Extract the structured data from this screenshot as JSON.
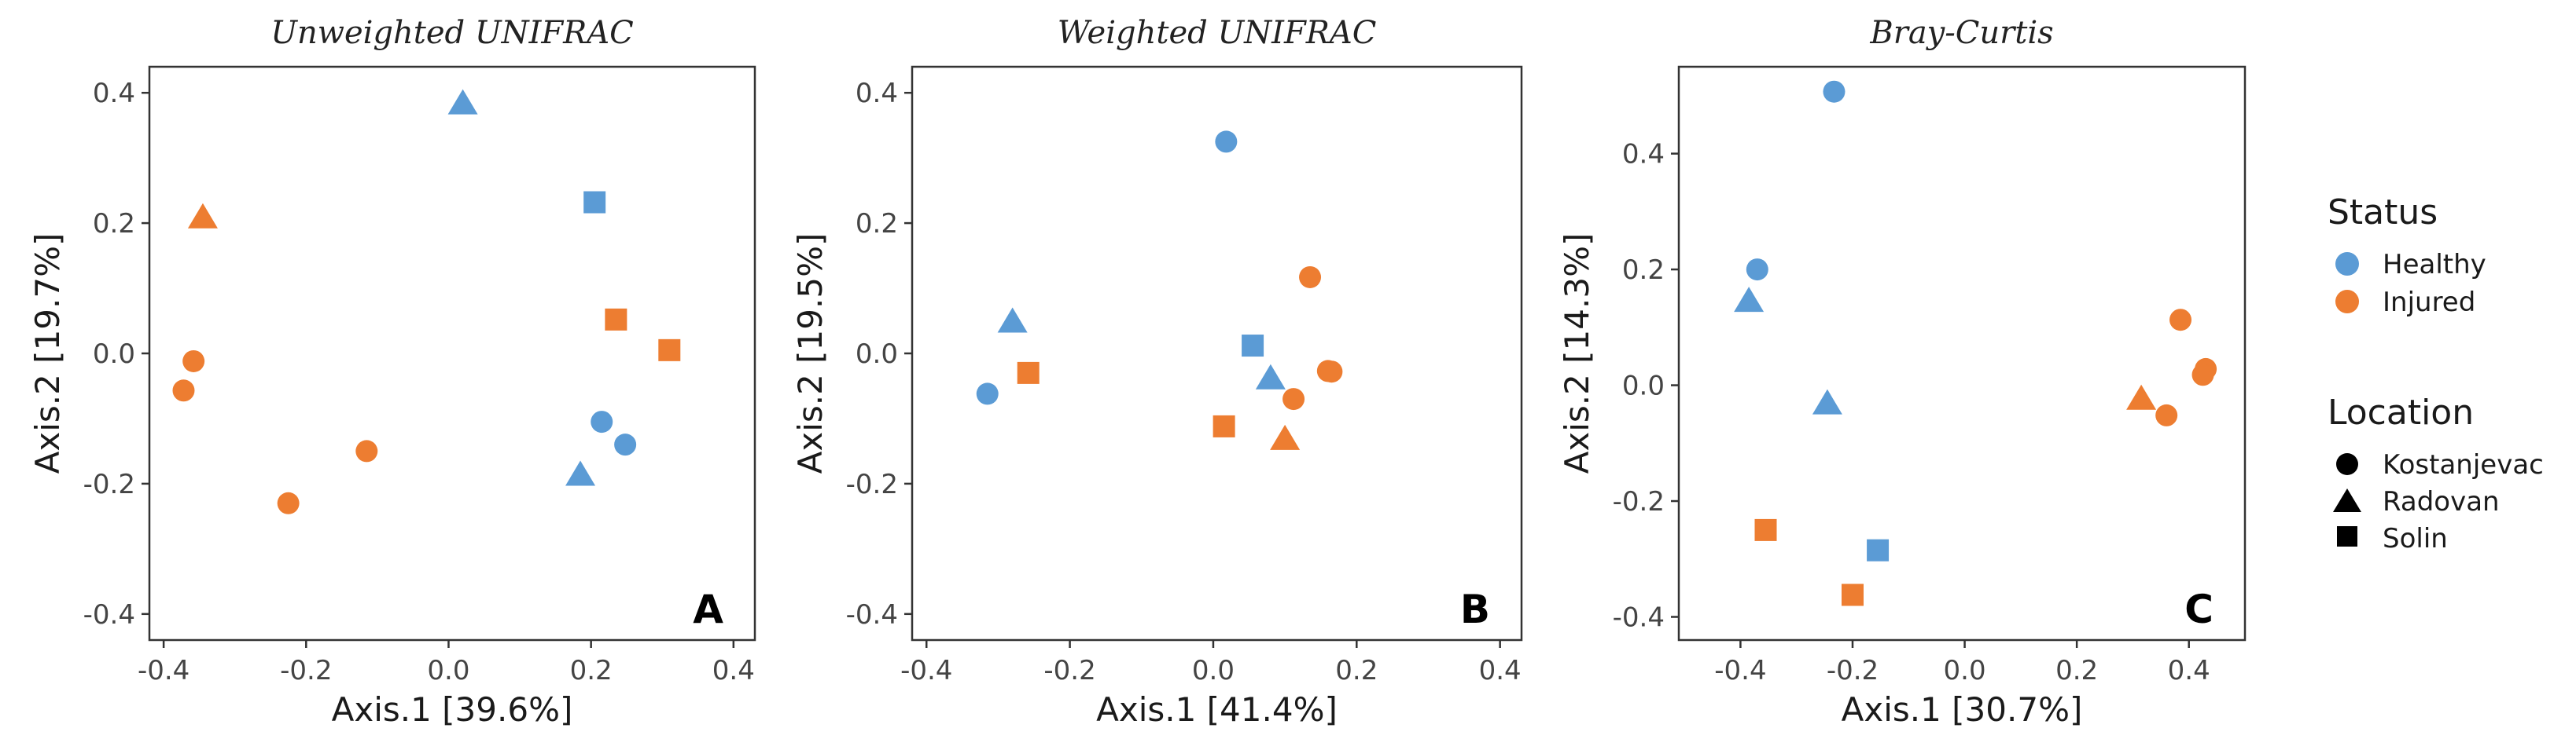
{
  "colors": {
    "Healthy": "#5B9BD5",
    "Injured": "#ED7D31"
  },
  "legend": {
    "status_title": "Status",
    "status_entries": [
      "Healthy",
      "Injured"
    ],
    "location_title": "Location",
    "location_entries": [
      "Kostanjevac",
      "Radovan",
      "Solin"
    ]
  },
  "chart_data": [
    {
      "type": "scatter",
      "title": "Unweighted UNIFRAC",
      "panel_label": "A",
      "xlabel": "Axis.1   [39.6%]",
      "ylabel": "Axis.2   [19.7%]",
      "xlim": [
        -0.42,
        0.43
      ],
      "ylim": [
        -0.44,
        0.44
      ],
      "xticks": [
        -0.4,
        -0.2,
        0.0,
        0.2,
        0.4
      ],
      "xtick_labels": [
        "-0.4",
        "-0.2",
        "0.0",
        "0.2",
        "0.4"
      ],
      "yticks": [
        -0.4,
        -0.2,
        0.0,
        0.2,
        0.4
      ],
      "ytick_labels": [
        "-0.4",
        "-0.2",
        "0.0",
        "0.2",
        "0.4"
      ],
      "points": [
        {
          "x": 0.02,
          "y": 0.385,
          "status": "Healthy",
          "location": "Radovan"
        },
        {
          "x": 0.205,
          "y": 0.232,
          "status": "Healthy",
          "location": "Solin"
        },
        {
          "x": 0.215,
          "y": -0.105,
          "status": "Healthy",
          "location": "Kostanjevac"
        },
        {
          "x": 0.248,
          "y": -0.14,
          "status": "Healthy",
          "location": "Kostanjevac"
        },
        {
          "x": 0.185,
          "y": -0.185,
          "status": "Healthy",
          "location": "Radovan"
        },
        {
          "x": -0.345,
          "y": 0.21,
          "status": "Injured",
          "location": "Radovan"
        },
        {
          "x": 0.235,
          "y": 0.052,
          "status": "Injured",
          "location": "Solin"
        },
        {
          "x": 0.31,
          "y": 0.005,
          "status": "Injured",
          "location": "Solin"
        },
        {
          "x": -0.358,
          "y": -0.012,
          "status": "Injured",
          "location": "Kostanjevac"
        },
        {
          "x": -0.372,
          "y": -0.057,
          "status": "Injured",
          "location": "Kostanjevac"
        },
        {
          "x": -0.115,
          "y": -0.15,
          "status": "Injured",
          "location": "Kostanjevac"
        },
        {
          "x": -0.225,
          "y": -0.23,
          "status": "Injured",
          "location": "Kostanjevac"
        }
      ]
    },
    {
      "type": "scatter",
      "title": "Weighted UNIFRAC",
      "panel_label": "B",
      "xlabel": "Axis.1   [41.4%]",
      "ylabel": "Axis.2   [19.5%]",
      "xlim": [
        -0.42,
        0.43
      ],
      "ylim": [
        -0.44,
        0.44
      ],
      "xticks": [
        -0.4,
        -0.2,
        0.0,
        0.2,
        0.4
      ],
      "xtick_labels": [
        "-0.4",
        "-0.2",
        "0.0",
        "0.2",
        "0.4"
      ],
      "yticks": [
        -0.4,
        -0.2,
        0.0,
        0.2,
        0.4
      ],
      "ytick_labels": [
        "-0.4",
        "-0.2",
        "0.0",
        "0.2",
        "0.4"
      ],
      "points": [
        {
          "x": 0.018,
          "y": 0.325,
          "status": "Healthy",
          "location": "Kostanjevac"
        },
        {
          "x": -0.28,
          "y": 0.05,
          "status": "Healthy",
          "location": "Radovan"
        },
        {
          "x": -0.315,
          "y": -0.062,
          "status": "Healthy",
          "location": "Kostanjevac"
        },
        {
          "x": 0.055,
          "y": 0.012,
          "status": "Healthy",
          "location": "Solin"
        },
        {
          "x": 0.08,
          "y": -0.037,
          "status": "Healthy",
          "location": "Radovan"
        },
        {
          "x": 0.135,
          "y": 0.117,
          "status": "Injured",
          "location": "Kostanjevac"
        },
        {
          "x": -0.258,
          "y": -0.03,
          "status": "Injured",
          "location": "Solin"
        },
        {
          "x": 0.16,
          "y": -0.027,
          "status": "Injured",
          "location": "Kostanjevac"
        },
        {
          "x": 0.165,
          "y": -0.028,
          "status": "Injured",
          "location": "Kostanjevac"
        },
        {
          "x": 0.112,
          "y": -0.07,
          "status": "Injured",
          "location": "Kostanjevac"
        },
        {
          "x": 0.015,
          "y": -0.112,
          "status": "Injured",
          "location": "Solin"
        },
        {
          "x": 0.1,
          "y": -0.13,
          "status": "Injured",
          "location": "Radovan"
        }
      ]
    },
    {
      "type": "scatter",
      "title": "Bray-Curtis",
      "panel_label": "C",
      "xlabel": "Axis.1   [30.7%]",
      "ylabel": "Axis.2   [14.3%]",
      "xlim": [
        -0.51,
        0.5
      ],
      "ylim": [
        -0.44,
        0.55
      ],
      "xticks": [
        -0.4,
        -0.2,
        0.0,
        0.2,
        0.4
      ],
      "xtick_labels": [
        "-0.4",
        "-0.2",
        "0.0",
        "0.2",
        "0.4"
      ],
      "yticks": [
        -0.4,
        -0.2,
        0.0,
        0.2,
        0.4
      ],
      "ytick_labels": [
        "-0.4",
        "-0.2",
        "0.0",
        "0.2",
        "0.4"
      ],
      "points": [
        {
          "x": -0.233,
          "y": 0.507,
          "status": "Healthy",
          "location": "Kostanjevac"
        },
        {
          "x": -0.37,
          "y": 0.2,
          "status": "Healthy",
          "location": "Kostanjevac"
        },
        {
          "x": -0.385,
          "y": 0.147,
          "status": "Healthy",
          "location": "Radovan"
        },
        {
          "x": -0.245,
          "y": -0.03,
          "status": "Healthy",
          "location": "Radovan"
        },
        {
          "x": -0.155,
          "y": -0.285,
          "status": "Healthy",
          "location": "Solin"
        },
        {
          "x": 0.385,
          "y": 0.113,
          "status": "Injured",
          "location": "Kostanjevac"
        },
        {
          "x": 0.43,
          "y": 0.028,
          "status": "Injured",
          "location": "Kostanjevac"
        },
        {
          "x": 0.425,
          "y": 0.018,
          "status": "Injured",
          "location": "Kostanjevac"
        },
        {
          "x": 0.315,
          "y": -0.022,
          "status": "Injured",
          "location": "Radovan"
        },
        {
          "x": 0.36,
          "y": -0.052,
          "status": "Injured",
          "location": "Kostanjevac"
        },
        {
          "x": -0.355,
          "y": -0.25,
          "status": "Injured",
          "location": "Solin"
        },
        {
          "x": -0.2,
          "y": -0.362,
          "status": "Injured",
          "location": "Solin"
        }
      ]
    }
  ]
}
